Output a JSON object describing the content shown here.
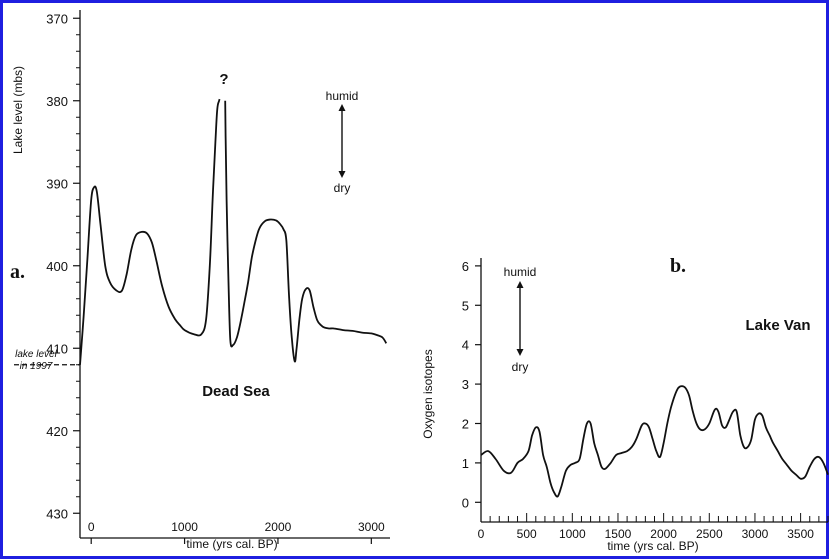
{
  "chart_data": [
    {
      "type": "line",
      "panel_label": "a.",
      "annotation_name": "Dead Sea",
      "ylabel": "Lake level (mbs)",
      "xlabel": "time (yrs cal. BP)",
      "x_ticks": [
        "0",
        "1000",
        "2000",
        "3000"
      ],
      "y_ticks": [
        "370",
        "380",
        "390",
        "400",
        "410",
        "420",
        "430"
      ],
      "y_inverted": true,
      "xlim": [
        -120,
        3200
      ],
      "ylim": [
        369,
        433
      ],
      "reference_line": {
        "value": 412,
        "label_line1": "lake level",
        "label_line2": "in 1997"
      },
      "arrow_top_label": "humid",
      "arrow_bottom_label": "dry",
      "gap_label": "?",
      "series": [
        {
          "x": [
            -120,
            -80,
            -40,
            0,
            30,
            60,
            100,
            150,
            200,
            270,
            330,
            380,
            430,
            480,
            540,
            600,
            650,
            700,
            760,
            830,
            900,
            950,
            1000,
            1100,
            1180,
            1230,
            1270,
            1300,
            1330,
            1350,
            1370,
            1375
          ],
          "y": [
            412,
            406,
            399,
            392,
            390.5,
            391,
            395,
            400,
            402,
            403,
            403,
            401,
            398,
            396.3,
            395.9,
            396.1,
            397.2,
            399.5,
            402.5,
            405,
            406.5,
            407.2,
            407.8,
            408.3,
            408.3,
            406.5,
            400,
            392,
            385,
            381,
            380,
            379.8
          ]
        },
        {
          "x": [
            1435,
            1440,
            1450,
            1470,
            1490,
            1520,
            1560,
            1600,
            1640,
            1680,
            1720,
            1760,
            1800,
            1860,
            1920,
            1980,
            2020,
            2060,
            2090,
            2120,
            2150,
            2180,
            2200,
            2230,
            2260,
            2300,
            2340,
            2380,
            2420,
            2460,
            2500,
            2550,
            2600,
            2700,
            2800,
            2900,
            3000,
            3060,
            3120,
            3160
          ],
          "y": [
            380,
            385,
            392,
            402,
            409,
            409.6,
            408.7,
            406.8,
            404.5,
            402,
            399,
            397,
            395.5,
            394.6,
            394.4,
            394.5,
            394.9,
            395.6,
            397,
            404,
            409,
            411.6,
            410,
            406.5,
            404,
            402.8,
            403,
            405,
            406.6,
            407.2,
            407.5,
            407.6,
            407.6,
            407.8,
            407.9,
            408.1,
            408.2,
            408.4,
            408.7,
            409.4
          ]
        }
      ]
    },
    {
      "type": "line",
      "panel_label": "b.",
      "annotation_name": "Lake Van",
      "ylabel": "Oxygen isotopes",
      "xlabel": "time (yrs cal. BP)",
      "x_ticks": [
        "0",
        "500",
        "1000",
        "1500",
        "2000",
        "2500",
        "3000",
        "3500"
      ],
      "y_ticks": [
        "0",
        "1",
        "2",
        "3",
        "4",
        "5",
        "6"
      ],
      "xlim": [
        0,
        3800
      ],
      "ylim": [
        -0.5,
        6.2
      ],
      "arrow_top_label": "humid",
      "arrow_bottom_label": "dry",
      "series": [
        {
          "x": [
            0,
            80,
            160,
            250,
            330,
            400,
            460,
            520,
            560,
            600,
            640,
            680,
            720,
            760,
            800,
            840,
            880,
            930,
            980,
            1030,
            1080,
            1120,
            1160,
            1200,
            1240,
            1280,
            1320,
            1360,
            1420,
            1480,
            1540,
            1600,
            1650,
            1700,
            1760,
            1800,
            1840,
            1880,
            1920,
            1960,
            2000,
            2040,
            2080,
            2120,
            2160,
            2200,
            2240,
            2280,
            2320,
            2360,
            2400,
            2450,
            2500,
            2560,
            2600,
            2640,
            2680,
            2720,
            2760,
            2800,
            2840,
            2880,
            2920,
            2960,
            3000,
            3040,
            3080,
            3120,
            3160,
            3200,
            3250,
            3300,
            3350,
            3400,
            3450,
            3500,
            3550,
            3600,
            3650,
            3700,
            3750,
            3800
          ],
          "y": [
            1.2,
            1.3,
            1.1,
            0.8,
            0.75,
            1.0,
            1.1,
            1.3,
            1.7,
            1.9,
            1.8,
            1.2,
            0.9,
            0.5,
            0.25,
            0.15,
            0.4,
            0.8,
            0.95,
            1.0,
            1.1,
            1.6,
            2.0,
            2.0,
            1.5,
            1.2,
            0.9,
            0.85,
            1.0,
            1.2,
            1.25,
            1.3,
            1.4,
            1.6,
            1.95,
            2.0,
            1.9,
            1.6,
            1.3,
            1.15,
            1.5,
            2.0,
            2.4,
            2.7,
            2.9,
            2.95,
            2.9,
            2.7,
            2.3,
            2.0,
            1.85,
            1.85,
            2.0,
            2.35,
            2.3,
            1.95,
            1.9,
            2.1,
            2.3,
            2.3,
            1.7,
            1.4,
            1.4,
            1.6,
            2.1,
            2.25,
            2.2,
            1.9,
            1.7,
            1.5,
            1.3,
            1.1,
            0.95,
            0.8,
            0.7,
            0.6,
            0.65,
            0.9,
            1.1,
            1.15,
            1.0,
            0.7
          ]
        }
      ]
    }
  ]
}
